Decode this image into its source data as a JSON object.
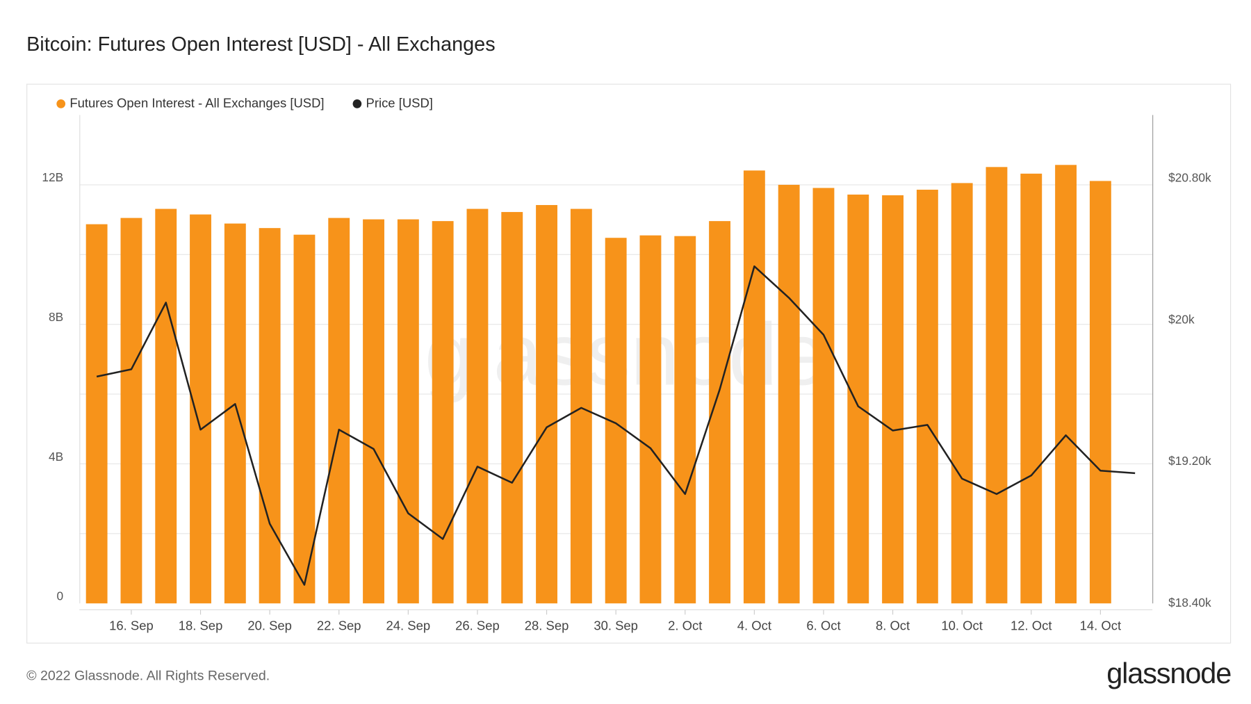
{
  "chart_data": {
    "type": "bar",
    "title": "Bitcoin: Futures Open Interest [USD] - All Exchanges",
    "footer": "© 2022 Glassnode. All Rights Reserved.",
    "brand": "glassnode",
    "categories": [
      null,
      "16. Sep",
      null,
      "18. Sep",
      null,
      "20. Sep",
      null,
      "22. Sep",
      null,
      "24. Sep",
      null,
      "26. Sep",
      null,
      "28. Sep",
      null,
      "30. Sep",
      null,
      "2. Oct",
      null,
      "4. Oct",
      null,
      "6. Oct",
      null,
      "8. Oct",
      null,
      "10. Oct",
      null,
      "12. Oct",
      null,
      "14. Oct",
      null
    ],
    "series": [
      {
        "name": "Futures Open Interest - All Exchanges [USD]",
        "type": "bar",
        "color": "#f7931a",
        "values": [
          10870000000,
          11050000000,
          11310000000,
          11150000000,
          10890000000,
          10760000000,
          10570000000,
          11050000000,
          11010000000,
          11010000000,
          10960000000,
          11310000000,
          11220000000,
          11420000000,
          11310000000,
          10480000000,
          10550000000,
          10530000000,
          10960000000,
          12410000000,
          12000000000,
          11910000000,
          11720000000,
          11700000000,
          11860000000,
          12050000000,
          12510000000,
          12320000000,
          12570000000,
          12110000000,
          null
        ]
      },
      {
        "name": "Price [USD]",
        "type": "line",
        "axis": "y2",
        "color": "#222222",
        "values": [
          19682,
          19723,
          20100,
          19382,
          19527,
          18850,
          18505,
          19382,
          19273,
          18909,
          18764,
          19173,
          19082,
          19395,
          19505,
          19418,
          19277,
          19018,
          19609,
          20305,
          20127,
          19918,
          19514,
          19377,
          19409,
          19105,
          19018,
          19123,
          19350,
          19150,
          19136
        ]
      }
    ],
    "ylim": [
      0,
      14000000000
    ],
    "yticks": [
      0,
      {
        "value": 4000000000,
        "label": "4B"
      },
      {
        "value": 8000000000,
        "label": "8B"
      },
      {
        "value": 12000000000,
        "label": "12B"
      }
    ],
    "ygrid": [
      2000000000,
      4000000000,
      6000000000,
      8000000000,
      10000000000,
      12000000000
    ],
    "y2lim": [
      18400,
      21160
    ],
    "y2ticks": [
      {
        "value": 18400,
        "label": "$18.40k"
      },
      {
        "value": 19200,
        "label": "$19.20k"
      },
      {
        "value": 20000,
        "label": "$20k"
      },
      {
        "value": 20800,
        "label": "$20.80k"
      }
    ],
    "grid": true,
    "legend": "top-left"
  }
}
